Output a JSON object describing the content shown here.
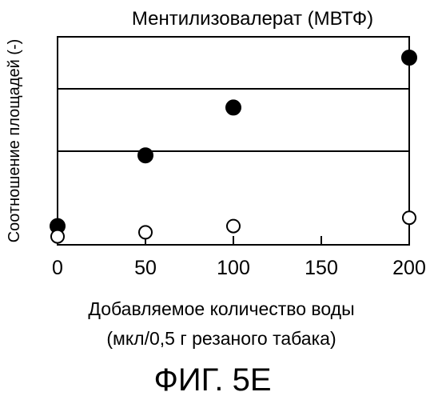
{
  "chart_data": {
    "type": "scatter",
    "title": "Ментилизовалерат (МВТФ)",
    "ylabel": "Соотношение площадей (-)",
    "xlabel_line1": "Добавляемое количество воды",
    "xlabel_line2": "(мкл/0,5 г резаного табака)",
    "x_ticks": [
      {
        "value": 0,
        "label": "0"
      },
      {
        "value": 50,
        "label": "50"
      },
      {
        "value": 100,
        "label": "100"
      },
      {
        "value": 150,
        "label": "150"
      },
      {
        "value": 200,
        "label": "200"
      }
    ],
    "xlim": [
      0,
      200
    ],
    "ylim": [
      0,
      1
    ],
    "y_tick_labels": false,
    "horizontal_lines": [
      0.45,
      0.75
    ],
    "series": [
      {
        "marker": "filled-circle",
        "color": "#000000",
        "points": [
          {
            "x": 0,
            "y": 0.09
          },
          {
            "x": 50,
            "y": 0.43
          },
          {
            "x": 100,
            "y": 0.66
          },
          {
            "x": 200,
            "y": 0.9
          }
        ]
      },
      {
        "marker": "open-circle",
        "color": "#000000",
        "points": [
          {
            "x": 0,
            "y": 0.04
          },
          {
            "x": 50,
            "y": 0.06
          },
          {
            "x": 100,
            "y": 0.09
          },
          {
            "x": 200,
            "y": 0.13
          }
        ]
      }
    ]
  },
  "caption": "ФИГ. 5E"
}
